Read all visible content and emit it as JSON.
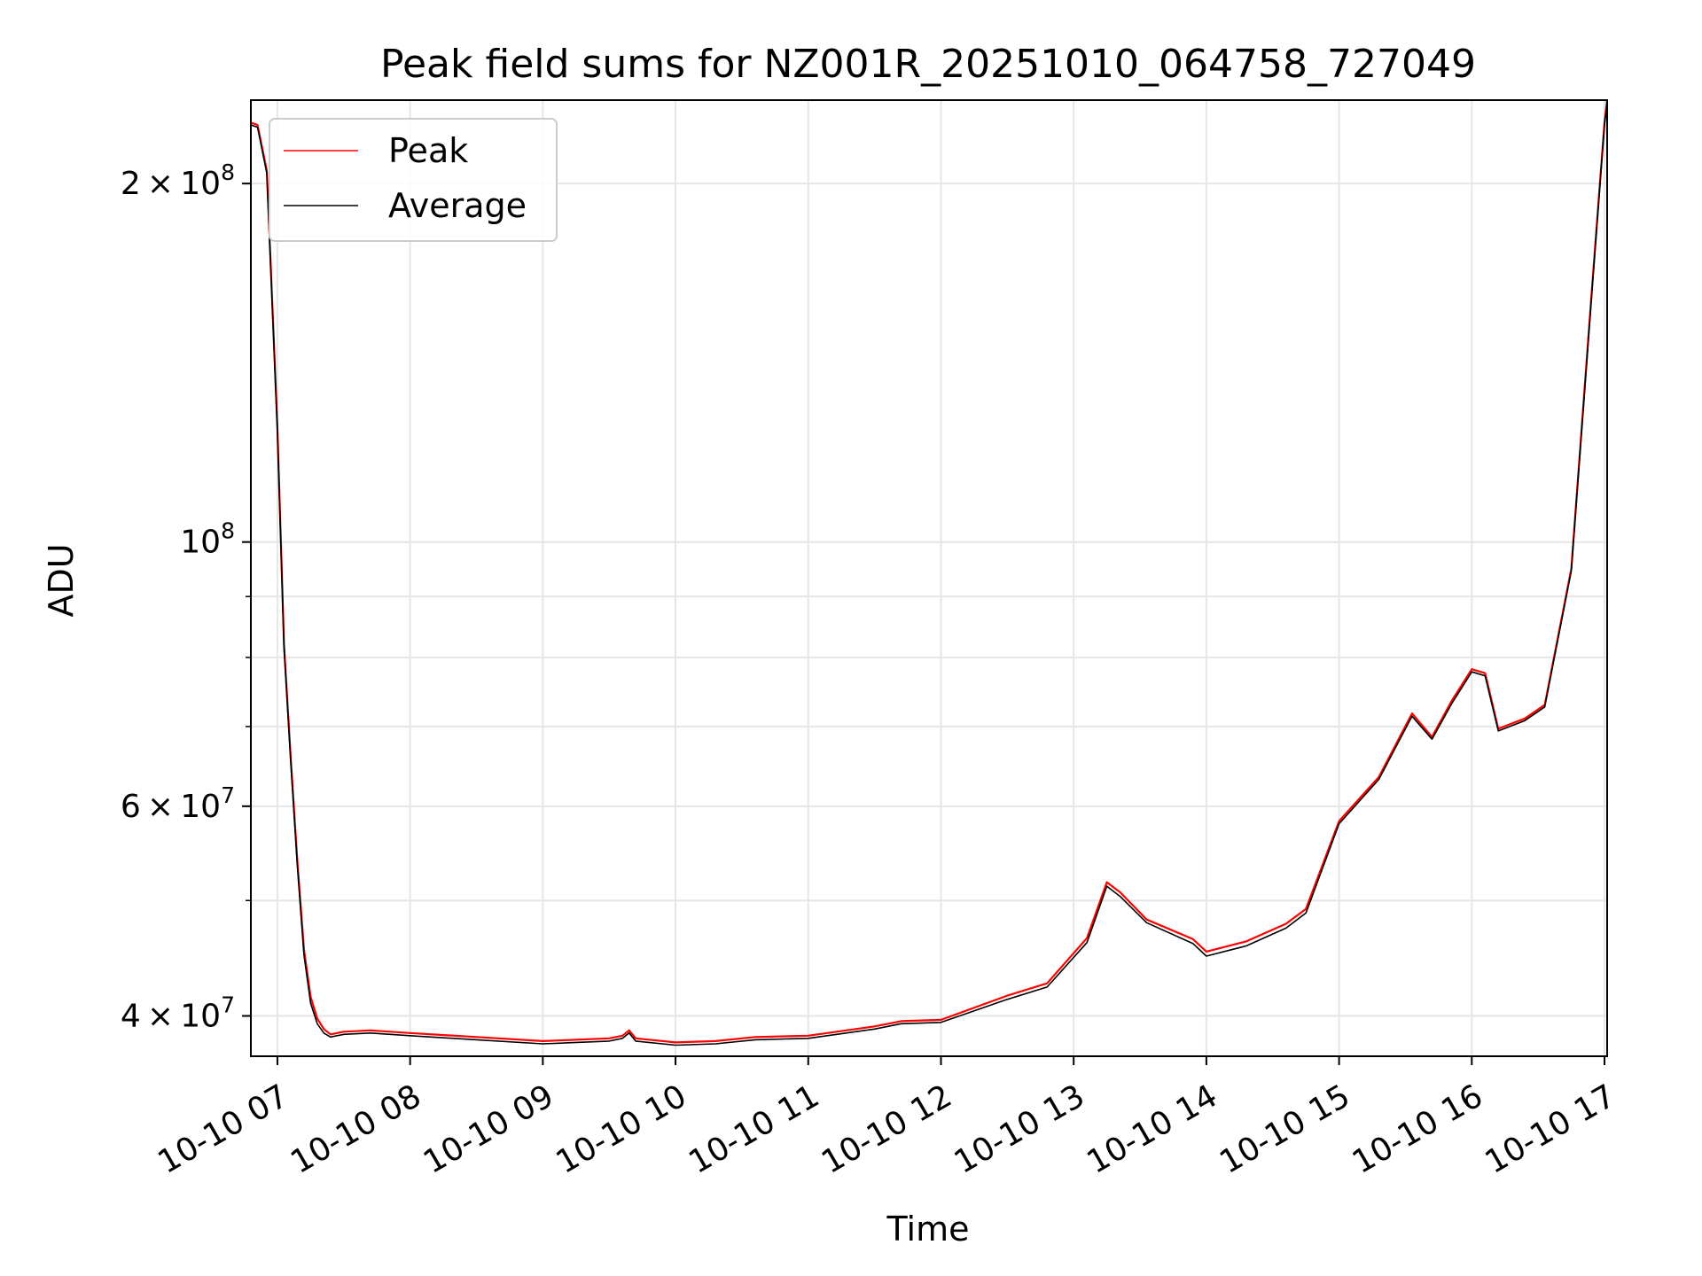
{
  "chart_data": {
    "type": "line",
    "title": "Peak field sums for NZ001R_20251010_064758_727049",
    "xlabel": "Time",
    "ylabel": "ADU",
    "yscale": "log",
    "xlim": [
      6.8,
      17.02
    ],
    "ylim": [
      37000000,
      235000000
    ],
    "grid": true,
    "legend_position": "top-left",
    "x_unit": "hour of 2025-10-10",
    "x_ticks": [
      {
        "value": 7,
        "label": "10-10 07"
      },
      {
        "value": 8,
        "label": "10-10 08"
      },
      {
        "value": 9,
        "label": "10-10 09"
      },
      {
        "value": 10,
        "label": "10-10 10"
      },
      {
        "value": 11,
        "label": "10-10 11"
      },
      {
        "value": 12,
        "label": "10-10 12"
      },
      {
        "value": 13,
        "label": "10-10 13"
      },
      {
        "value": 14,
        "label": "10-10 14"
      },
      {
        "value": 15,
        "label": "10-10 15"
      },
      {
        "value": 16,
        "label": "10-10 16"
      },
      {
        "value": 17,
        "label": "10-10 17"
      }
    ],
    "y_major_ticks": [
      {
        "value": 40000000,
        "mantissa": "4 × 10",
        "exponent": "7"
      },
      {
        "value": 60000000,
        "mantissa": "6 × 10",
        "exponent": "7"
      },
      {
        "value": 100000000,
        "mantissa": "10",
        "exponent": "8"
      },
      {
        "value": 200000000,
        "mantissa": "2 × 10",
        "exponent": "8"
      }
    ],
    "y_minor_grid": [
      50000000,
      70000000,
      80000000,
      90000000
    ],
    "series": [
      {
        "name": "Peak",
        "color": "#ff0000",
        "x": [
          6.8,
          6.85,
          6.92,
          7.0,
          7.05,
          7.1,
          7.15,
          7.2,
          7.25,
          7.3,
          7.35,
          7.4,
          7.5,
          7.7,
          8.0,
          8.5,
          9.0,
          9.5,
          9.6,
          9.65,
          9.7,
          10.0,
          10.3,
          10.6,
          11.0,
          11.5,
          11.7,
          12.0,
          12.5,
          12.8,
          13.1,
          13.25,
          13.35,
          13.55,
          13.9,
          14.0,
          14.3,
          14.6,
          14.75,
          15.0,
          15.3,
          15.55,
          15.7,
          15.85,
          16.0,
          16.1,
          16.2,
          16.4,
          16.55,
          16.75,
          16.9,
          17.0,
          17.02
        ],
        "values": [
          225000000,
          224000000,
          205000000,
          125000000,
          82000000,
          66000000,
          54000000,
          45500000,
          41500000,
          39800000,
          39000000,
          38600000,
          38800000,
          38900000,
          38700000,
          38400000,
          38100000,
          38300000,
          38500000,
          38900000,
          38300000,
          38000000,
          38100000,
          38400000,
          38500000,
          39200000,
          39600000,
          39700000,
          41600000,
          42600000,
          46500000,
          51800000,
          50800000,
          48200000,
          46400000,
          45300000,
          46200000,
          47800000,
          49200000,
          58300000,
          63500000,
          71800000,
          68600000,
          73600000,
          78200000,
          77600000,
          69700000,
          71100000,
          73000000,
          95000000,
          160000000,
          225000000,
          235000000
        ]
      },
      {
        "name": "Average",
        "color": "#000000",
        "x": [
          6.8,
          6.85,
          6.92,
          7.0,
          7.05,
          7.1,
          7.15,
          7.2,
          7.25,
          7.3,
          7.35,
          7.4,
          7.5,
          7.7,
          8.0,
          8.5,
          9.0,
          9.5,
          9.6,
          9.65,
          9.7,
          10.0,
          10.3,
          10.6,
          11.0,
          11.5,
          11.7,
          12.0,
          12.5,
          12.8,
          13.1,
          13.25,
          13.35,
          13.55,
          13.9,
          14.0,
          14.3,
          14.6,
          14.75,
          15.0,
          15.3,
          15.55,
          15.7,
          15.85,
          16.0,
          16.1,
          16.2,
          16.4,
          16.55,
          16.75,
          16.9,
          17.0,
          17.02
        ],
        "values": [
          224000000,
          223000000,
          204000000,
          124000000,
          81500000,
          65500000,
          53500000,
          45000000,
          41000000,
          39400000,
          38700000,
          38400000,
          38600000,
          38700000,
          38500000,
          38200000,
          37900000,
          38100000,
          38300000,
          38700000,
          38100000,
          37800000,
          37900000,
          38200000,
          38300000,
          39000000,
          39400000,
          39500000,
          41300000,
          42300000,
          46100000,
          51400000,
          50400000,
          47900000,
          46000000,
          44900000,
          45800000,
          47400000,
          48800000,
          58000000,
          63200000,
          71400000,
          68300000,
          73200000,
          77800000,
          77200000,
          69400000,
          70800000,
          72700000,
          94600000,
          159000000,
          224000000,
          234000000
        ]
      }
    ]
  }
}
